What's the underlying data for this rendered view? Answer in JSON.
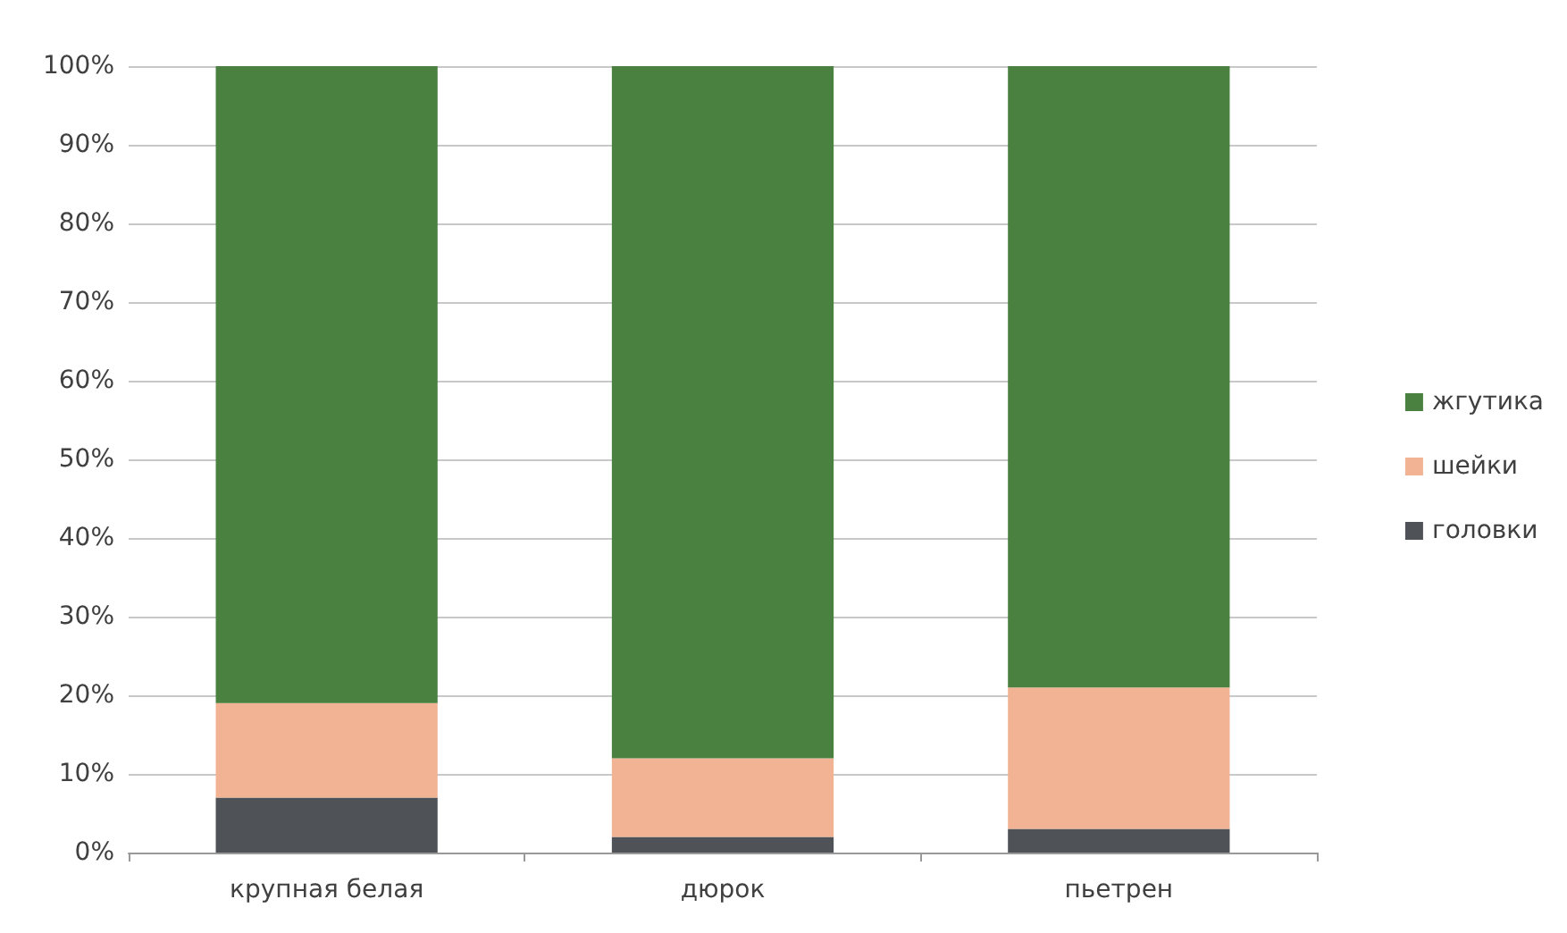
{
  "chart_data": {
    "type": "bar",
    "stacked": true,
    "categories": [
      "крупная белая",
      "дюрок",
      "пьетрен"
    ],
    "series": [
      {
        "name": "головки",
        "color": "#4f5358",
        "values": [
          7,
          2,
          3
        ]
      },
      {
        "name": "шейки",
        "color": "#f2b394",
        "values": [
          12,
          10,
          18
        ]
      },
      {
        "name": "жгутика",
        "color": "#4a8040",
        "values": [
          81,
          88,
          79
        ]
      }
    ],
    "ylim": [
      0,
      100
    ],
    "yticks": [
      {
        "value": 0,
        "label": "0%"
      },
      {
        "value": 10,
        "label": "10%"
      },
      {
        "value": 20,
        "label": "20%"
      },
      {
        "value": 30,
        "label": "30%"
      },
      {
        "value": 40,
        "label": "40%"
      },
      {
        "value": 50,
        "label": "50%"
      },
      {
        "value": 60,
        "label": "60%"
      },
      {
        "value": 70,
        "label": "70%"
      },
      {
        "value": 80,
        "label": "80%"
      },
      {
        "value": 90,
        "label": "90%"
      },
      {
        "value": 100,
        "label": "100%"
      }
    ],
    "grid": "y",
    "legend": "right"
  }
}
